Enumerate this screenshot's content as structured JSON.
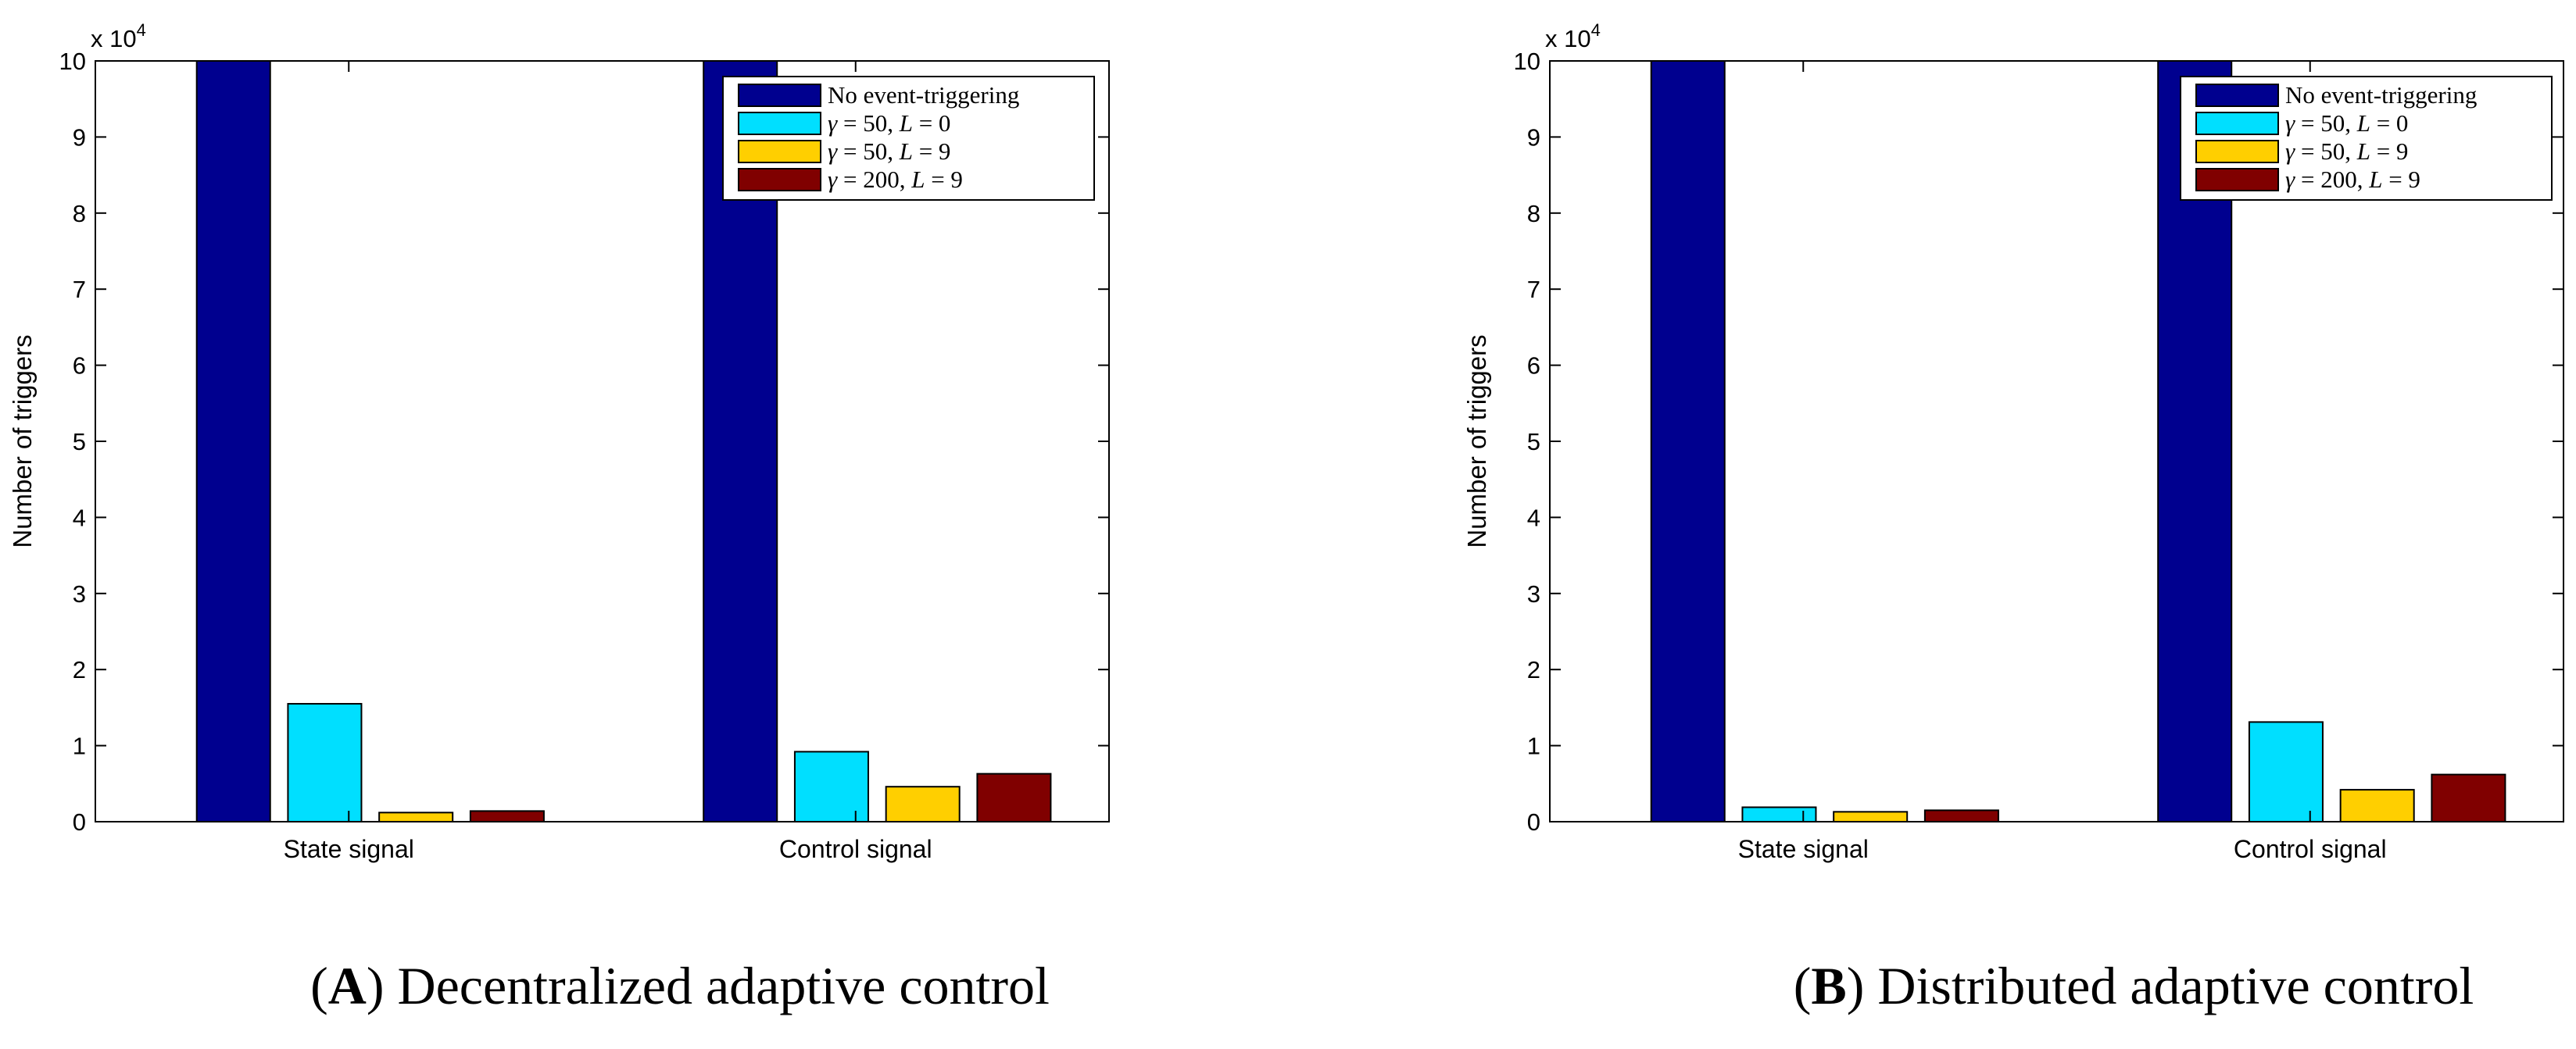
{
  "chart_data": [
    {
      "type": "bar",
      "panel_label": "A",
      "caption": ") Decentralized adaptive control",
      "categories": [
        "State signal",
        "Control signal"
      ],
      "ylabel": "Number of triggers",
      "xlabel": "",
      "y_multiplier": "x 10",
      "y_multiplier_exp": "4",
      "yticks": [
        "0",
        "1",
        "2",
        "3",
        "4",
        "5",
        "6",
        "7",
        "8",
        "9",
        "10"
      ],
      "ylim": [
        0,
        100000
      ],
      "grid": false,
      "legend_position": "top-right",
      "series": [
        {
          "name": "No event-triggering",
          "color": "#00008F",
          "values": [
            100000,
            100000
          ]
        },
        {
          "name": "γ = 50, L = 0",
          "color": "#00DFFF",
          "values": [
            15500,
            9200
          ]
        },
        {
          "name": "γ = 50, L = 9",
          "color": "#FFCF00",
          "values": [
            1200,
            4600
          ]
        },
        {
          "name": "γ = 200, L = 9",
          "color": "#800000",
          "values": [
            1400,
            6300
          ]
        }
      ]
    },
    {
      "type": "bar",
      "panel_label": "B",
      "caption": ") Distributed adaptive control",
      "categories": [
        "State signal",
        "Control signal"
      ],
      "ylabel": "Number of triggers",
      "xlabel": "",
      "y_multiplier": "x 10",
      "y_multiplier_exp": "4",
      "yticks": [
        "0",
        "1",
        "2",
        "3",
        "4",
        "5",
        "6",
        "7",
        "8",
        "9",
        "10"
      ],
      "ylim": [
        0,
        100000
      ],
      "grid": false,
      "legend_position": "top-right",
      "series": [
        {
          "name": "No event-triggering",
          "color": "#00008F",
          "values": [
            100000,
            100000
          ]
        },
        {
          "name": "γ = 50, L = 0",
          "color": "#00DFFF",
          "values": [
            1900,
            13100
          ]
        },
        {
          "name": "γ = 50, L = 9",
          "color": "#FFCF00",
          "values": [
            1300,
            4200
          ]
        },
        {
          "name": "γ = 200, L = 9",
          "color": "#800000",
          "values": [
            1500,
            6200
          ]
        }
      ]
    }
  ]
}
